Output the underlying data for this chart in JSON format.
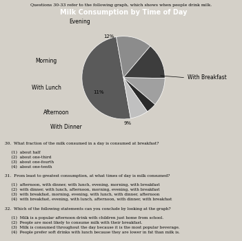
{
  "title": "Milk Consumption by Time of Day",
  "slices": [
    {
      "label": "With Breakfast",
      "pct": 50,
      "color": "#5a5a5a"
    },
    {
      "label": "Evening",
      "pct": 14,
      "color": "#8c8c8c"
    },
    {
      "label": "Morning",
      "pct": 14,
      "color": "#3d3d3d"
    },
    {
      "label": "With Lunch",
      "pct": 11,
      "color": "#a0a0a0"
    },
    {
      "label": "Afternoon",
      "pct": 4,
      "color": "#2a2a2a"
    },
    {
      "label": "With Dinner",
      "pct": 7,
      "color": "#c0c0c0"
    }
  ],
  "title_bg": "#8a8a8a",
  "title_fontsize": 7,
  "label_fontsize": 5.5,
  "pct_fontsize": 5,
  "fig_bg": "#d4d0c8",
  "chart_bg": "#e8e4dc"
}
